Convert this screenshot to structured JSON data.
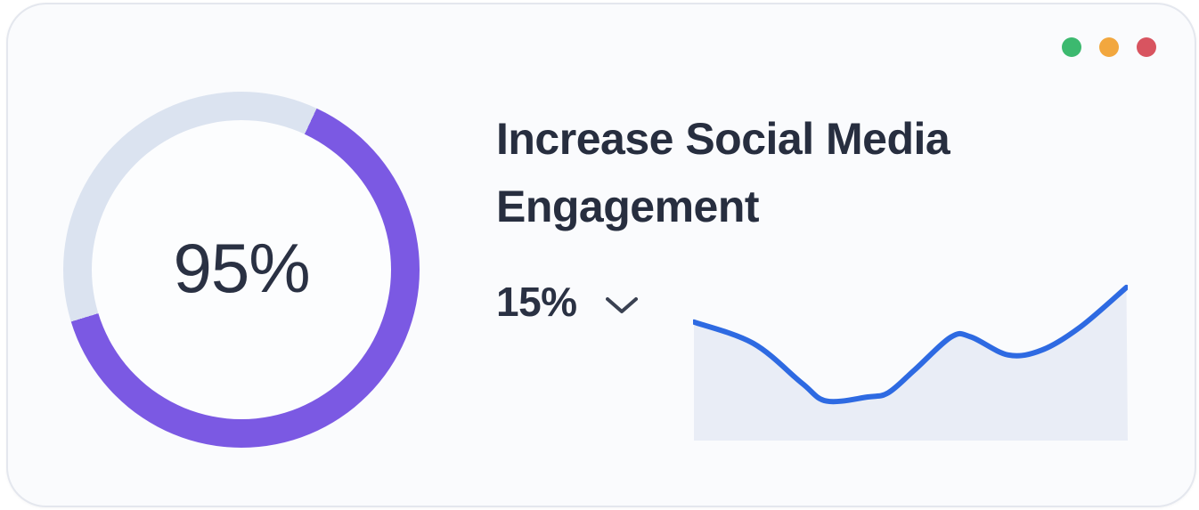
{
  "window": {
    "dots": [
      {
        "name": "green",
        "color": "#3cb96f"
      },
      {
        "name": "orange",
        "color": "#f2a73e"
      },
      {
        "name": "red",
        "color": "#d85460"
      }
    ]
  },
  "goal": {
    "title": "Increase Social Media Engagement",
    "progress_label": "95%",
    "change_label": "15%"
  },
  "progress_ring": {
    "value_percent": 95,
    "arc_start_deg": 25,
    "arc_sweep_deg": 228,
    "arc_color": "#7b59e3",
    "track_color": "#dbe3f0",
    "inner_color": "#fcfdfe"
  },
  "chart_data": {
    "type": "area",
    "title": "",
    "xlabel": "",
    "ylabel": "",
    "axes": "none",
    "grid": false,
    "legend": "none",
    "x": [
      0.2,
      13.9,
      25.0,
      30.7,
      40.2,
      44.9,
      51.0,
      59.4,
      63.9,
      72.5,
      80.3,
      89.1,
      99.7
    ],
    "values": [
      72,
      59,
      35,
      24,
      26.5,
      29,
      43,
      63,
      63,
      52,
      55,
      69,
      93
    ],
    "line_color": "#2e6ae2",
    "fill_color": "#e9edf6"
  },
  "colors": {
    "page_bg": "#ffffff",
    "card_bg": "#fafbfd",
    "card_border": "#e4e7ee",
    "text_dark": "#2a3143"
  }
}
